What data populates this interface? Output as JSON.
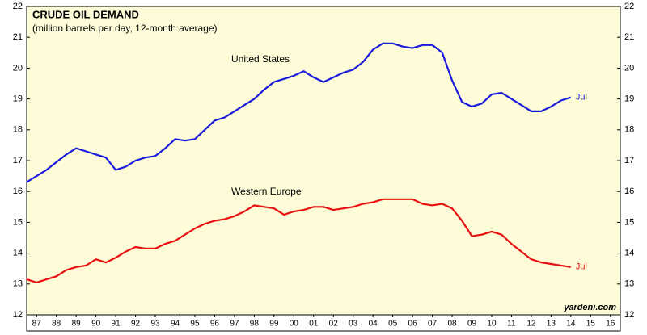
{
  "chart_data": {
    "type": "line",
    "title": "CRUDE OIL DEMAND",
    "subtitle": "(million barrels per day, 12-month average)",
    "source": "yardeni.com",
    "background": "#fdfbd8",
    "xlim": [
      1987,
      2017
    ],
    "xticks": [
      {
        "value": 1987.5,
        "label": "87"
      },
      {
        "value": 1988.5,
        "label": "88"
      },
      {
        "value": 1989.5,
        "label": "89"
      },
      {
        "value": 1990.5,
        "label": "90"
      },
      {
        "value": 1991.5,
        "label": "91"
      },
      {
        "value": 1992.5,
        "label": "92"
      },
      {
        "value": 1993.5,
        "label": "93"
      },
      {
        "value": 1994.5,
        "label": "94"
      },
      {
        "value": 1995.5,
        "label": "95"
      },
      {
        "value": 1996.5,
        "label": "96"
      },
      {
        "value": 1997.5,
        "label": "97"
      },
      {
        "value": 1998.5,
        "label": "98"
      },
      {
        "value": 1999.5,
        "label": "99"
      },
      {
        "value": 2000.5,
        "label": "00"
      },
      {
        "value": 2001.5,
        "label": "01"
      },
      {
        "value": 2002.5,
        "label": "02"
      },
      {
        "value": 2003.5,
        "label": "03"
      },
      {
        "value": 2004.5,
        "label": "04"
      },
      {
        "value": 2005.5,
        "label": "05"
      },
      {
        "value": 2006.5,
        "label": "06"
      },
      {
        "value": 2007.5,
        "label": "07"
      },
      {
        "value": 2008.5,
        "label": "08"
      },
      {
        "value": 2009.5,
        "label": "09"
      },
      {
        "value": 2010.5,
        "label": "10"
      },
      {
        "value": 2011.5,
        "label": "11"
      },
      {
        "value": 2012.5,
        "label": "12"
      },
      {
        "value": 2013.5,
        "label": "13"
      },
      {
        "value": 2014.5,
        "label": "14"
      },
      {
        "value": 2015.5,
        "label": "15"
      },
      {
        "value": 2016.5,
        "label": "16"
      }
    ],
    "ylim": [
      12,
      22
    ],
    "yticks": [
      12,
      13,
      14,
      15,
      16,
      17,
      18,
      19,
      20,
      21,
      22
    ],
    "x": [
      1987.0,
      1987.5,
      1988.0,
      1988.5,
      1989.0,
      1989.5,
      1990.0,
      1990.5,
      1991.0,
      1991.5,
      1992.0,
      1992.5,
      1993.0,
      1993.5,
      1994.0,
      1994.5,
      1995.0,
      1995.5,
      1996.0,
      1996.5,
      1997.0,
      1997.5,
      1998.0,
      1998.5,
      1999.0,
      1999.5,
      2000.0,
      2000.5,
      2001.0,
      2001.5,
      2002.0,
      2002.5,
      2003.0,
      2003.5,
      2004.0,
      2004.5,
      2005.0,
      2005.5,
      2006.0,
      2006.5,
      2007.0,
      2007.5,
      2008.0,
      2008.5,
      2009.0,
      2009.5,
      2010.0,
      2010.5,
      2011.0,
      2011.5,
      2012.0,
      2012.5,
      2013.0,
      2013.5,
      2014.0,
      2014.5
    ],
    "series": [
      {
        "name": "United States",
        "color": "#1a1adc",
        "end_label": "Jul",
        "values": [
          16.3,
          16.5,
          16.7,
          16.95,
          17.2,
          17.4,
          17.3,
          17.2,
          17.1,
          16.7,
          16.8,
          17.0,
          17.1,
          17.15,
          17.4,
          17.7,
          17.65,
          17.7,
          18.0,
          18.3,
          18.4,
          18.6,
          18.8,
          19.0,
          19.3,
          19.55,
          19.65,
          19.75,
          19.9,
          19.7,
          19.55,
          19.7,
          19.85,
          19.95,
          20.2,
          20.6,
          20.8,
          20.8,
          20.7,
          20.65,
          20.75,
          20.75,
          20.5,
          19.6,
          18.9,
          18.75,
          18.85,
          19.15,
          19.2,
          19.0,
          18.8,
          18.6,
          18.6,
          18.75,
          18.95,
          19.05
        ]
      },
      {
        "name": "Western Europe",
        "color": "#e81010",
        "end_label": "Jul",
        "values": [
          13.15,
          13.05,
          13.15,
          13.25,
          13.45,
          13.55,
          13.6,
          13.8,
          13.7,
          13.85,
          14.05,
          14.2,
          14.15,
          14.15,
          14.3,
          14.4,
          14.6,
          14.8,
          14.95,
          15.05,
          15.1,
          15.2,
          15.35,
          15.55,
          15.5,
          15.45,
          15.25,
          15.35,
          15.4,
          15.5,
          15.5,
          15.4,
          15.45,
          15.5,
          15.6,
          15.65,
          15.75,
          15.75,
          15.75,
          15.75,
          15.6,
          15.55,
          15.6,
          15.45,
          15.05,
          14.55,
          14.6,
          14.7,
          14.6,
          14.3,
          14.05,
          13.8,
          13.7,
          13.65,
          13.6,
          13.55
        ]
      }
    ]
  }
}
